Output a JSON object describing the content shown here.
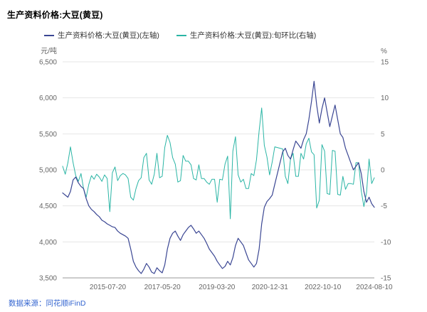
{
  "title": "生产资料价格:大豆(黄豆)",
  "legend": [
    {
      "label": "生产资料价格:大豆(黄豆)(左轴)",
      "color": "#3a4693"
    },
    {
      "label": "生产资料价格:大豆(黄豆):旬环比(右轴)",
      "color": "#2ab5a5"
    }
  ],
  "source": "数据来源：同花顺iFinD",
  "source_color": "#3465d0",
  "chart_data": {
    "type": "line",
    "title": "生产资料价格:大豆(黄豆)",
    "grid": "horizontal",
    "legend_position": "top-left",
    "left_axis": {
      "unit": "元/吨",
      "min": 3500,
      "max": 6500,
      "tick_labels": [
        "6,500",
        "6,000",
        "5,500",
        "5,000",
        "4,500",
        "4,000",
        "3,500"
      ],
      "tick_values": [
        6500,
        6000,
        5500,
        5000,
        4500,
        4000,
        3500
      ]
    },
    "right_axis": {
      "unit": "%",
      "min": -15,
      "max": 15,
      "tick_labels": [
        "15",
        "10",
        "5",
        "0",
        "-5",
        "-10",
        "-15"
      ],
      "tick_values": [
        15,
        10,
        5,
        0,
        -5,
        -10,
        -15
      ]
    },
    "x_ticks": [
      {
        "label": "2015-07-20",
        "pos": 0.145
      },
      {
        "label": "2017-05-20",
        "pos": 0.32
      },
      {
        "label": "2019-03-20",
        "pos": 0.495
      },
      {
        "label": "2020-12-31",
        "pos": 0.665
      },
      {
        "label": "2022-10-10",
        "pos": 0.835
      },
      {
        "label": "2024-08-10",
        "pos": 1.0
      }
    ],
    "series": [
      {
        "name": "生产资料价格:大豆(黄豆)(左轴)",
        "axis": "left",
        "color": "#3a4693",
        "values": [
          4680,
          4650,
          4620,
          4700,
          4860,
          4900,
          4820,
          4770,
          4740,
          4600,
          4500,
          4450,
          4420,
          4380,
          4350,
          4300,
          4280,
          4250,
          4230,
          4210,
          4200,
          4150,
          4120,
          4100,
          4080,
          4050,
          3900,
          3730,
          3650,
          3600,
          3560,
          3620,
          3700,
          3650,
          3580,
          3560,
          3640,
          3600,
          3570,
          3680,
          3900,
          4050,
          4120,
          4150,
          4080,
          4020,
          4100,
          4150,
          4200,
          4230,
          4180,
          4120,
          4150,
          4100,
          4050,
          3980,
          3900,
          3850,
          3800,
          3730,
          3680,
          3630,
          3660,
          3730,
          3680,
          3780,
          3950,
          4050,
          4000,
          3950,
          3850,
          3750,
          3700,
          3650,
          3700,
          3900,
          4250,
          4480,
          4560,
          4600,
          4650,
          4800,
          4950,
          5100,
          5250,
          5300,
          5200,
          5150,
          5280,
          5400,
          5350,
          5300,
          5420,
          5500,
          5700,
          5950,
          6230,
          5900,
          5650,
          5850,
          6000,
          5800,
          5600,
          5750,
          5900,
          5700,
          5500,
          5450,
          5300,
          5200,
          5100,
          5000,
          5050,
          5100,
          4950,
          4700,
          4550,
          4620,
          4530,
          4480
        ]
      },
      {
        "name": "生产资料价格:大豆(黄豆):旬环比(右轴)",
        "axis": "right",
        "color": "#2ab5a5",
        "values": [
          0.5,
          -0.6,
          1.0,
          3.2,
          1.0,
          -0.8,
          -1.6,
          -0.5,
          -2.6,
          -3.8,
          -2.0,
          -0.8,
          -1.3,
          -0.6,
          -1.0,
          -1.6,
          -0.7,
          -1.2,
          -5.8,
          -0.4,
          0.4,
          -1.5,
          -0.8,
          -0.5,
          -0.7,
          -1.2,
          -3.8,
          -4.2,
          -2.6,
          -1.5,
          -1.1,
          1.7,
          2.3,
          -1.4,
          -2.0,
          -0.6,
          2.3,
          -1.1,
          -0.9,
          3.1,
          4.8,
          3.8,
          1.7,
          0.8,
          -1.7,
          -1.5,
          2.0,
          1.2,
          1.2,
          0.7,
          -1.2,
          -1.4,
          0.7,
          -1.2,
          -1.2,
          -1.7,
          -2.0,
          -1.3,
          -1.3,
          -4.5,
          -1.3,
          -1.4,
          0.8,
          1.9,
          -6.8,
          2.6,
          4.6,
          -0.7,
          -1.7,
          -1.3,
          -2.6,
          -2.6,
          -0.5,
          -0.8,
          1.4,
          5.4,
          8.6,
          3.4,
          1.8,
          -0.7,
          1.1,
          3.2,
          3.1,
          3.0,
          2.9,
          -0.9,
          -1.9,
          1.5,
          2.3,
          -0.9,
          -0.9,
          2.3,
          1.5,
          3.6,
          4.4,
          2.5,
          2.1,
          -5.3,
          -4.2,
          3.5,
          2.6,
          -3.3,
          -3.4,
          2.7,
          2.6,
          -3.4,
          -3.5,
          -0.9,
          -2.7,
          -1.9,
          -1.9,
          -2.0,
          1.0,
          1.0,
          -2.9,
          -5.1,
          -3.2,
          1.5,
          -1.9,
          -1.1
        ]
      }
    ]
  }
}
